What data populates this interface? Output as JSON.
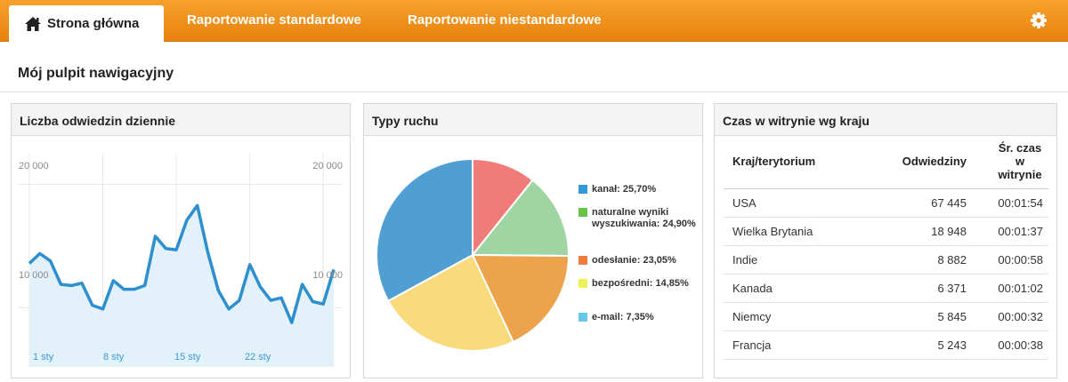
{
  "nav": {
    "home_label": "Strona główna",
    "tabs": [
      {
        "label": "Raportowanie standardowe"
      },
      {
        "label": "Raportowanie niestandardowe"
      }
    ],
    "home_icon": "home-icon",
    "settings_icon": "gear-icon"
  },
  "page": {
    "title": "Mój pulpit nawigacyjny"
  },
  "visits_panel": {
    "title": "Liczba odwiedzin dziennie",
    "chart_data": {
      "type": "area",
      "y_ticks_left": [
        "20 000",
        "10 000"
      ],
      "y_ticks_right": [
        "20 000",
        "10 000"
      ],
      "x_labels": [
        "1 sty",
        "8 sty",
        "15 sty",
        "22 sty"
      ],
      "ylim": [
        5200,
        22500
      ],
      "values": [
        13600,
        14400,
        13800,
        11900,
        11800,
        12000,
        10200,
        9900,
        12200,
        11500,
        11500,
        11800,
        15800,
        14800,
        14700,
        17100,
        18300,
        14500,
        11400,
        9900,
        10600,
        13500,
        11700,
        10600,
        10800,
        8800,
        11900,
        10500,
        10300,
        13100
      ],
      "line_color": "#2d8fce",
      "fill_color": "#e3f1fb"
    }
  },
  "traffic_panel": {
    "title": "Typy ruchu",
    "chart_data": {
      "type": "pie",
      "slices": [
        {
          "label": "kanał: 25,70%",
          "value": 25.7,
          "color": "#3399d6"
        },
        {
          "label": "naturalne wyniki wyszukiwania: 24,90%",
          "value": 24.9,
          "color": "#6cc34a"
        },
        {
          "label": "odesłanie: 23,05%",
          "value": 23.05,
          "color": "#ee7c3c"
        },
        {
          "label": "bezpośredni: 14,85%",
          "value": 14.85,
          "color": "#eef05a"
        },
        {
          "label": "e-mail: 7,35%",
          "value": 7.35,
          "color": "#66c7e9"
        }
      ],
      "pie_slices": [
        {
          "value": 10.75,
          "color": "#f07b78"
        },
        {
          "value": 14.4,
          "color": "#9ed5a2"
        },
        {
          "value": 17.9,
          "color": "#eda34b"
        },
        {
          "value": 24.0,
          "color": "#f9da7c"
        },
        {
          "value": 32.95,
          "color": "#4f9fd2"
        }
      ]
    }
  },
  "country_panel": {
    "title": "Czas w witrynie wg kraju",
    "columns": [
      "Kraj/terytorium",
      "Odwiedziny",
      "Śr. czas w witrynie"
    ],
    "rows": [
      {
        "country": "USA",
        "visits": "67 445",
        "time": "00:01:54"
      },
      {
        "country": "Wielka Brytania",
        "visits": "18 948",
        "time": "00:01:37"
      },
      {
        "country": "Indie",
        "visits": "8 882",
        "time": "00:00:58"
      },
      {
        "country": "Kanada",
        "visits": "6 371",
        "time": "00:01:02"
      },
      {
        "country": "Niemcy",
        "visits": "5 845",
        "time": "00:00:32"
      },
      {
        "country": "Francja",
        "visits": "5 243",
        "time": "00:00:38"
      }
    ]
  }
}
